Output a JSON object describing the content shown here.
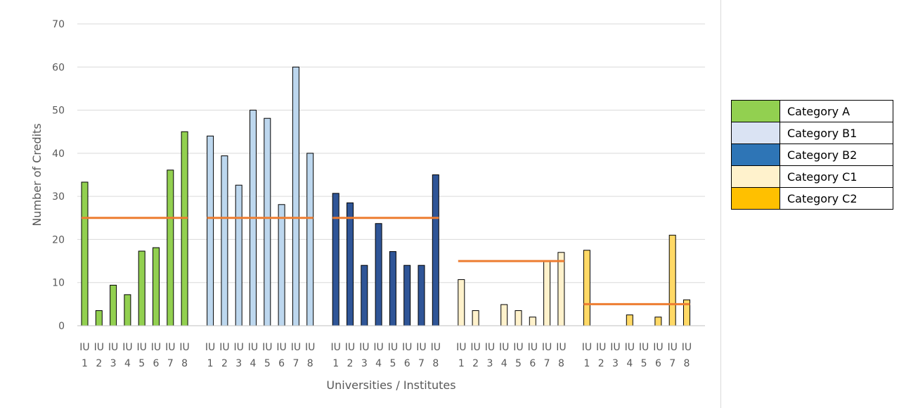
{
  "chart_data": {
    "type": "bar",
    "ylabel": "Number of Credits",
    "xlabel": "Universities / Institutes",
    "ylim": [
      0,
      70
    ],
    "yticks": [
      "0",
      "10",
      "20",
      "30",
      "40",
      "50",
      "60",
      "70"
    ],
    "grid": true,
    "legend_placement": "right",
    "x_tick_prefix": "IU",
    "x_tick_numbers": [
      "1",
      "2",
      "3",
      "4",
      "5",
      "6",
      "7",
      "8"
    ],
    "series": [
      {
        "name": "Category A",
        "color": "#92d050",
        "fill": "#92d050",
        "values": [
          33.3,
          3.5,
          9.4,
          7.2,
          17.3,
          18.1,
          36.1,
          45.0
        ],
        "threshold": 25
      },
      {
        "name": "Category B1",
        "color": "#dae3f3",
        "fill": "#bdd7ee",
        "values": [
          44.0,
          39.4,
          32.6,
          50.0,
          48.1,
          28.1,
          60.0,
          40.0
        ],
        "threshold": 25
      },
      {
        "name": "Category B2",
        "color": "#2e75b6",
        "fill": "#2f5597",
        "values": [
          30.7,
          28.5,
          14.0,
          23.7,
          17.2,
          14.0,
          14.0,
          35.0
        ],
        "threshold": 25
      },
      {
        "name": "Category C1",
        "color": "#fff2cc",
        "fill": "#fff2cc",
        "values": [
          10.7,
          3.5,
          0,
          4.9,
          3.5,
          2.0,
          15.0,
          17.0
        ],
        "threshold": 15
      },
      {
        "name": "Category C2",
        "color": "#ffc000",
        "fill": "#ffd966",
        "values": [
          17.5,
          0,
          0,
          2.5,
          0,
          2.0,
          21.0,
          6.0
        ],
        "threshold": 5
      }
    ],
    "threshold_color": "#ed7d31"
  }
}
